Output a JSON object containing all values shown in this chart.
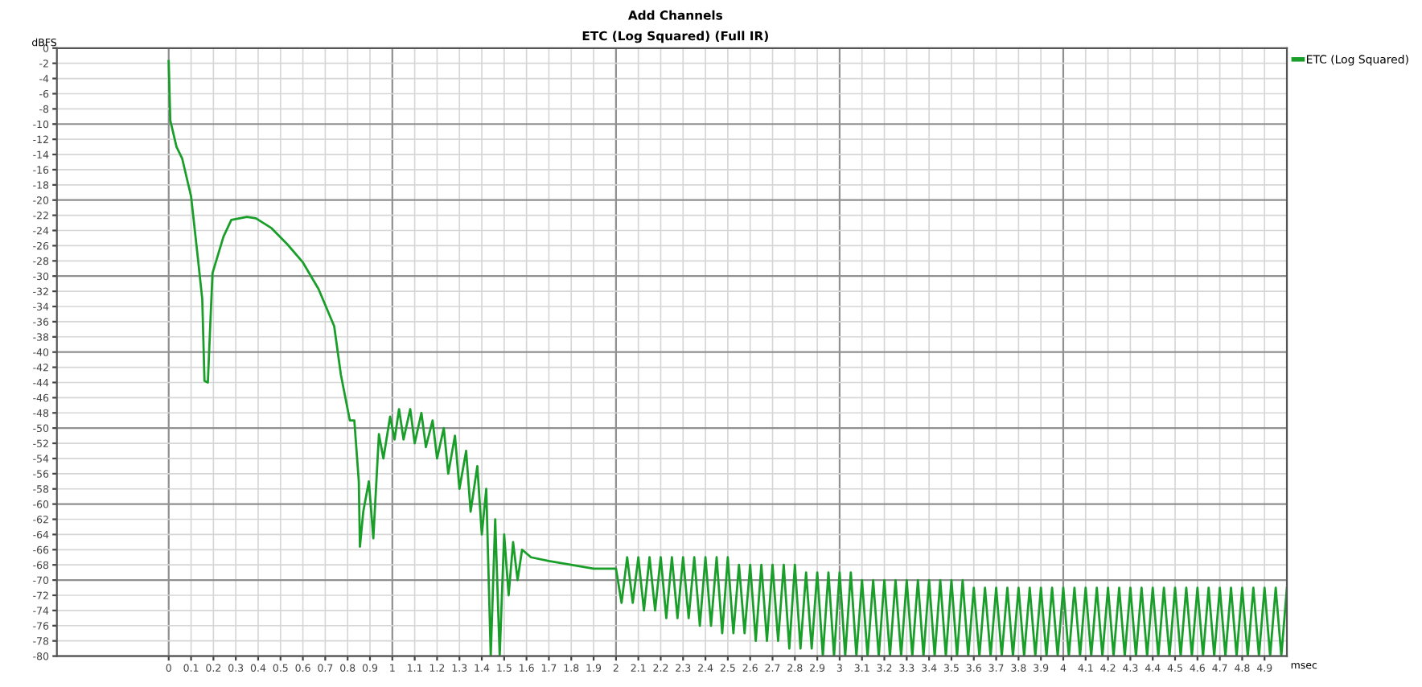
{
  "chart_data": {
    "type": "line",
    "title": "Add Channels",
    "subtitle": "ETC (Log Squared) (Full IR)",
    "xlabel": "msec",
    "ylabel": "dBFS",
    "xlim": [
      -0.5,
      5.0
    ],
    "ylim": [
      -80,
      0
    ],
    "xticks": [
      0,
      0.1,
      0.2,
      0.3,
      0.4,
      0.5,
      0.6,
      0.7,
      0.8,
      0.9,
      1,
      1.1,
      1.2,
      1.3,
      1.4,
      1.5,
      1.6,
      1.7,
      1.8,
      1.9,
      2,
      2.1,
      2.2,
      2.3,
      2.4,
      2.5,
      2.6,
      2.7,
      2.8,
      2.9,
      3,
      3.1,
      3.2,
      3.3,
      3.4,
      3.5,
      3.6,
      3.7,
      3.8,
      3.9,
      4,
      4.1,
      4.2,
      4.3,
      4.4,
      4.5,
      4.6,
      4.7,
      4.8,
      4.9
    ],
    "yticks": [
      0,
      -2,
      -4,
      -6,
      -8,
      -10,
      -12,
      -14,
      -16,
      -18,
      -20,
      -22,
      -24,
      -26,
      -28,
      -30,
      -32,
      -34,
      -36,
      -38,
      -40,
      -42,
      -44,
      -46,
      -48,
      -50,
      -52,
      -54,
      -56,
      -58,
      -60,
      -62,
      -64,
      -66,
      -68,
      -70,
      -72,
      -74,
      -76,
      -78,
      -80
    ],
    "grid": true,
    "legend": "top right",
    "series": [
      {
        "name": "ETC (Log Squared)",
        "color": "#1a9e2a",
        "x": [
          0,
          0.007,
          0.035,
          0.06,
          0.1,
          0.13,
          0.15,
          0.16,
          0.175,
          0.185,
          0.196,
          0.245,
          0.28,
          0.35,
          0.39,
          0.46,
          0.53,
          0.6,
          0.67,
          0.74,
          0.77,
          0.81,
          0.83,
          0.85,
          0.855,
          0.87,
          0.895,
          0.915,
          0.94,
          0.96,
          0.99,
          1.01,
          1.03,
          1.05,
          1.08,
          1.1,
          1.13,
          1.15,
          1.18,
          1.2,
          1.23,
          1.25,
          1.28,
          1.3,
          1.33,
          1.35,
          1.38,
          1.4,
          1.42,
          1.44,
          1.46,
          1.48,
          1.5,
          1.52,
          1.54,
          1.56,
          1.58,
          1.62,
          1.7,
          1.8,
          1.9,
          2.0,
          2.025,
          2.05,
          2.075,
          2.1,
          2.125,
          2.15,
          2.175,
          2.2,
          2.225,
          2.25,
          2.275,
          2.3,
          2.325,
          2.35,
          2.375,
          2.4,
          2.425,
          2.45,
          2.475,
          2.5,
          2.525,
          2.55,
          2.575,
          2.6,
          2.625,
          2.65,
          2.675,
          2.7,
          2.725,
          2.75,
          2.775,
          2.8,
          2.825,
          2.85,
          2.875,
          2.9,
          2.925,
          2.95,
          2.975,
          3.0,
          3.025,
          3.05,
          3.075,
          3.1,
          3.125,
          3.15,
          3.175,
          3.2,
          3.225,
          3.25,
          3.275,
          3.3,
          3.325,
          3.35,
          3.375,
          3.4,
          3.425,
          3.45,
          3.475,
          3.5,
          3.525,
          3.55,
          3.575,
          3.6,
          3.625,
          3.65,
          3.675,
          3.7,
          3.725,
          3.75,
          3.775,
          3.8,
          3.825,
          3.85,
          3.875,
          3.9,
          3.925,
          3.95,
          3.975,
          4.0,
          4.025,
          4.05,
          4.075,
          4.1,
          4.125,
          4.15,
          4.175,
          4.2,
          4.225,
          4.25,
          4.275,
          4.3,
          4.325,
          4.35,
          4.375,
          4.4,
          4.425,
          4.45,
          4.475,
          4.5,
          4.525,
          4.55,
          4.575,
          4.6,
          4.625,
          4.65,
          4.675,
          4.7,
          4.725,
          4.75,
          4.775,
          4.8,
          4.825,
          4.85,
          4.875,
          4.9,
          4.925,
          4.95,
          4.975,
          5.0
        ],
        "values": [
          -1.7,
          -9.5,
          -13,
          -14.5,
          -19.5,
          -27.5,
          -33,
          -43.8,
          -44,
          -37,
          -29.6,
          -24.8,
          -22.6,
          -22.2,
          -22.4,
          -23.7,
          -25.8,
          -28.2,
          -31.7,
          -36.6,
          -43,
          -49,
          -49,
          -57,
          -65.6,
          -61,
          -57,
          -64.5,
          -50.8,
          -54,
          -48.5,
          -51.5,
          -47.5,
          -51.5,
          -47.5,
          -52,
          -48,
          -52.5,
          -49,
          -54,
          -50,
          -56,
          -51,
          -58,
          -53,
          -61,
          -55,
          -64,
          -58,
          -80,
          -62,
          -80,
          -64,
          -72,
          -65,
          -70,
          -66,
          -67,
          -67.5,
          -68,
          -68.5,
          -68.5,
          -73,
          -67,
          -73,
          -67,
          -74,
          -67,
          -74,
          -67,
          -75,
          -67,
          -75,
          -67,
          -75,
          -67,
          -76,
          -67,
          -76,
          -67,
          -77,
          -67,
          -77,
          -68,
          -77,
          -68,
          -78,
          -68,
          -78,
          -68,
          -78,
          -68,
          -79,
          -68,
          -79,
          -69,
          -79,
          -69,
          -80,
          -69,
          -80,
          -69,
          -80,
          -69,
          -80,
          -70,
          -80,
          -70,
          -80,
          -70,
          -80,
          -70,
          -80,
          -70,
          -80,
          -70,
          -80,
          -70,
          -80,
          -70,
          -80,
          -70,
          -80,
          -70,
          -80,
          -71,
          -80,
          -71,
          -80,
          -71,
          -80,
          -71,
          -80,
          -71,
          -80,
          -71,
          -80,
          -71,
          -80,
          -71,
          -80,
          -71,
          -80,
          -71,
          -80,
          -71,
          -80,
          -71,
          -80,
          -71,
          -80,
          -71,
          -80,
          -71,
          -80,
          -71,
          -80,
          -71,
          -80,
          -71,
          -80,
          -71,
          -80,
          -71,
          -80,
          -71,
          -80,
          -71,
          -80,
          -71,
          -80,
          -71,
          -80,
          -71,
          -80,
          -71,
          -80,
          -71,
          -80,
          -71,
          -80,
          -71
        ]
      }
    ]
  }
}
